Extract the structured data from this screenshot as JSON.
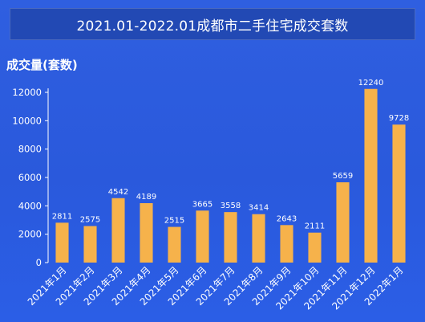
{
  "header": {
    "title": "2021.01-2022.01成都市二手住宅成交套数"
  },
  "chart_data": {
    "type": "bar",
    "title": "2021.01-2022.01成都市二手住宅成交套数",
    "xlabel": "",
    "ylabel": "成交量(套数)",
    "ylim": [
      0,
      12000
    ],
    "yticks": [
      0,
      2000,
      4000,
      6000,
      8000,
      10000,
      12000
    ],
    "grid": false,
    "categories": [
      "2021年1月",
      "2021年2月",
      "2021年3月",
      "2021年4月",
      "2021年5月",
      "2021年6月",
      "2021年7月",
      "2021年8月",
      "2021年9月",
      "2021年10月",
      "2021年11月",
      "2021年12月",
      "2022年1月"
    ],
    "values": [
      2811,
      2575,
      4542,
      4189,
      2515,
      3665,
      3558,
      3414,
      2643,
      2111,
      5659,
      12240,
      9728
    ]
  },
  "colors": {
    "bar": "#f6b24b",
    "background": "#2d5ce2",
    "title_box": "#2249b4"
  }
}
